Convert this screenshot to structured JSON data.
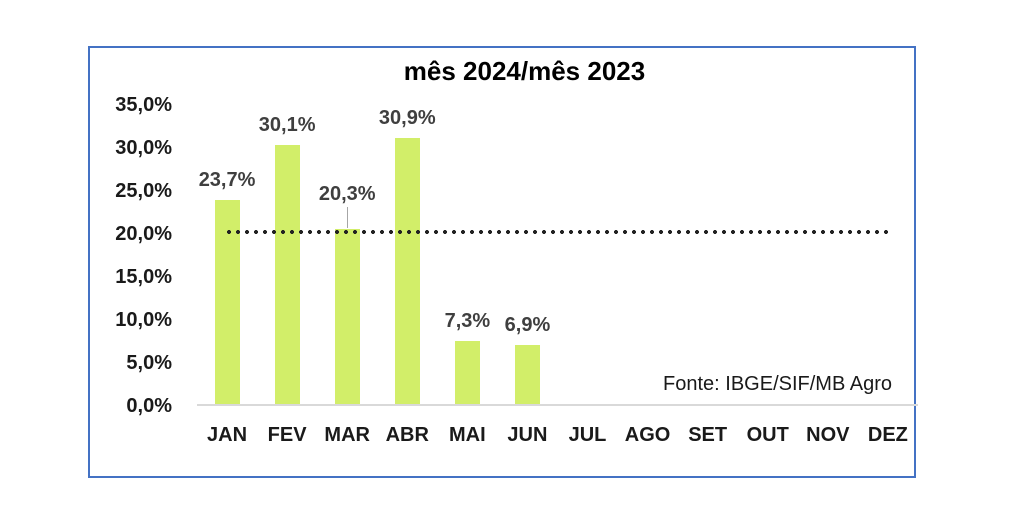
{
  "chart_data": {
    "type": "bar",
    "title": "mês 2024/mês 2023",
    "categories": [
      "JAN",
      "FEV",
      "MAR",
      "ABR",
      "MAI",
      "JUN",
      "JUL",
      "AGO",
      "SET",
      "OUT",
      "NOV",
      "DEZ"
    ],
    "values": [
      23.7,
      30.1,
      20.3,
      30.9,
      7.3,
      6.9,
      null,
      null,
      null,
      null,
      null,
      null
    ],
    "data_labels": [
      "23,7%",
      "30,1%",
      "20,3%",
      "30,9%",
      "7,3%",
      "6,9%",
      "",
      "",
      "",
      "",
      "",
      ""
    ],
    "callouts": [
      false,
      false,
      true,
      false,
      false,
      false,
      false,
      false,
      false,
      false,
      false,
      false
    ],
    "y_tick_labels": [
      "35,0%",
      "30,0%",
      "25,0%",
      "20,0%",
      "15,0%",
      "10,0%",
      "5,0%",
      "0,0%"
    ],
    "ylim": [
      0,
      35
    ],
    "y_step": 5,
    "grid": false,
    "legend": "none",
    "reference_line": {
      "value": 20,
      "style": "dotted",
      "color": "#222222"
    },
    "source_note": "Fonte: IBGE/SIF/MB Agro",
    "bar_color": "#d2ee69",
    "border_color": "#4472c4",
    "baseline_color": "#d9d9d9",
    "data_label_color": "#3f3f3f",
    "text_color": "#1a1a1a"
  }
}
